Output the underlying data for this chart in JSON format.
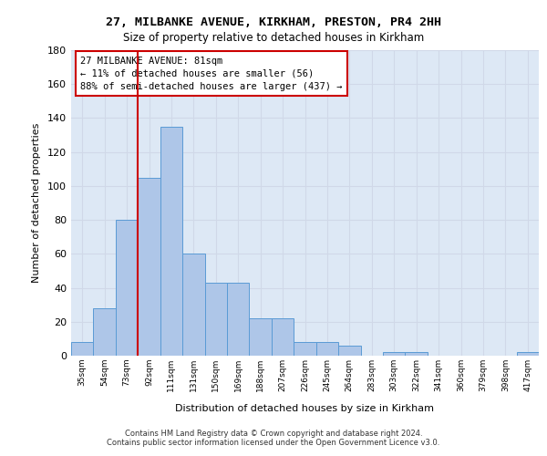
{
  "title1": "27, MILBANKE AVENUE, KIRKHAM, PRESTON, PR4 2HH",
  "title2": "Size of property relative to detached houses in Kirkham",
  "xlabel": "Distribution of detached houses by size in Kirkham",
  "ylabel": "Number of detached properties",
  "footer1": "Contains HM Land Registry data © Crown copyright and database right 2024.",
  "footer2": "Contains public sector information licensed under the Open Government Licence v3.0.",
  "bin_labels": [
    "35sqm",
    "54sqm",
    "73sqm",
    "92sqm",
    "111sqm",
    "131sqm",
    "150sqm",
    "169sqm",
    "188sqm",
    "207sqm",
    "226sqm",
    "245sqm",
    "264sqm",
    "283sqm",
    "303sqm",
    "322sqm",
    "341sqm",
    "360sqm",
    "379sqm",
    "398sqm",
    "417sqm"
  ],
  "bar_heights": [
    8,
    28,
    80,
    105,
    135,
    60,
    43,
    43,
    22,
    22,
    8,
    8,
    6,
    0,
    2,
    2,
    0,
    0,
    0,
    0,
    2
  ],
  "bar_color": "#aec6e8",
  "bar_edge_color": "#5a9bd5",
  "vline_x_index": 2.5,
  "vline_color": "#cc0000",
  "annotation_text": "27 MILBANKE AVENUE: 81sqm\n← 11% of detached houses are smaller (56)\n88% of semi-detached houses are larger (437) →",
  "annotation_box_color": "#ffffff",
  "annotation_box_edge_color": "#cc0000",
  "ylim": [
    0,
    180
  ],
  "yticks": [
    0,
    20,
    40,
    60,
    80,
    100,
    120,
    140,
    160,
    180
  ],
  "grid_color": "#d0d8e8",
  "background_color": "#dde8f5"
}
